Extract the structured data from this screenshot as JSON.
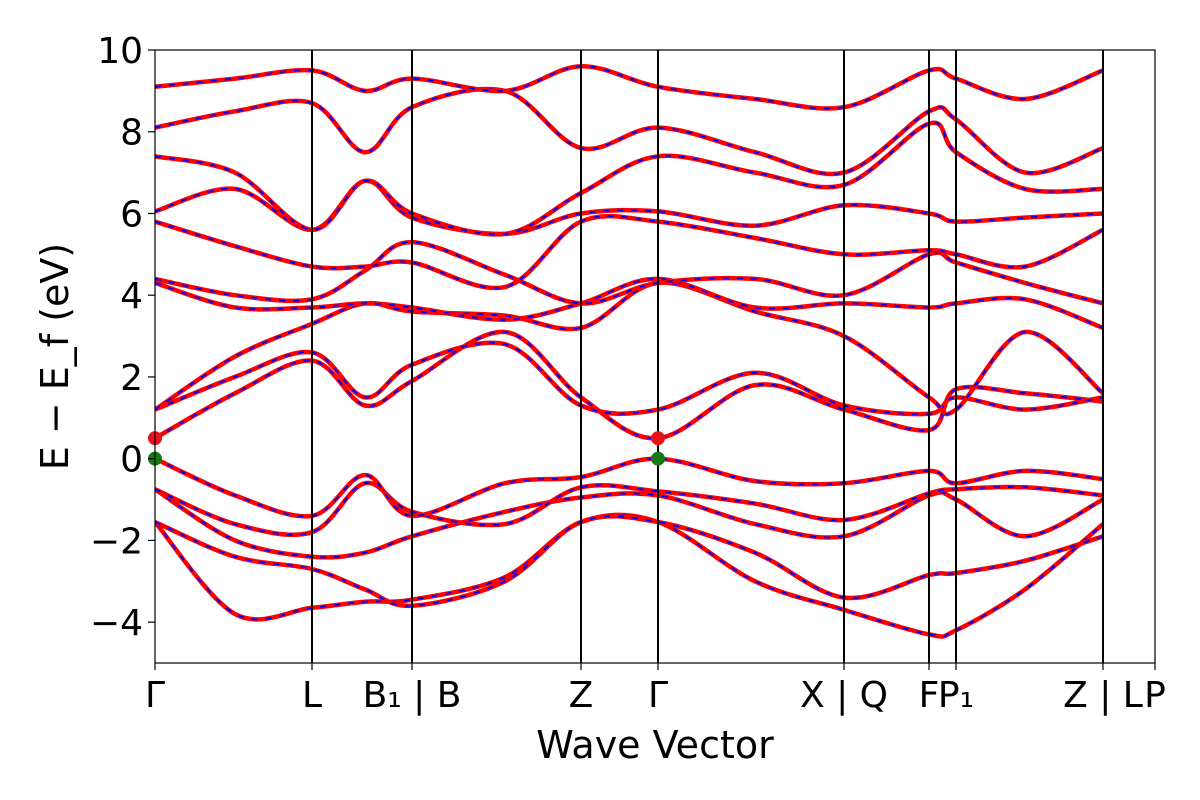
{
  "chart_data": {
    "type": "line",
    "title": "",
    "xlabel": "Wave Vector",
    "ylabel": "E − E_f (eV)",
    "ylim": [
      -5,
      10
    ],
    "yticks": [
      -4,
      -2,
      0,
      2,
      4,
      6,
      8,
      10
    ],
    "ytick_labels": [
      "−4",
      "−2",
      "0",
      "2",
      "4",
      "6",
      "8",
      "10"
    ],
    "x_range": [
      0,
      1
    ],
    "kpoints": [
      {
        "x": 0.0,
        "label": "Γ"
      },
      {
        "x": 0.157,
        "label": "L"
      },
      {
        "x": 0.257,
        "label": "B₁ | B"
      },
      {
        "x": 0.426,
        "label": "Z"
      },
      {
        "x": 0.503,
        "label": "Γ"
      },
      {
        "x": 0.689,
        "label": "X | Q"
      },
      {
        "x": 0.774,
        "label": "F"
      },
      {
        "x": 0.801,
        "label": "P₁"
      },
      {
        "x": 0.948,
        "label": "Z | L"
      },
      {
        "x": 1.0,
        "label": "P"
      }
    ],
    "band_colors": {
      "dft": "#ff0000",
      "interp": "#0000ff"
    },
    "markers": [
      {
        "name": "CBM",
        "points": [
          {
            "x": 0.0,
            "y": 0.5
          },
          {
            "x": 0.503,
            "y": 0.5
          }
        ],
        "color": "#e8141c"
      },
      {
        "name": "VBM",
        "points": [
          {
            "x": 0.0,
            "y": 0.0
          },
          {
            "x": 0.503,
            "y": 0.0
          }
        ],
        "color": "#137a13"
      }
    ],
    "series": [
      {
        "x": [
          0,
          0.08,
          0.157,
          0.21,
          0.257,
          0.35,
          0.426,
          0.503,
          0.6,
          0.689,
          0.774,
          0.801,
          0.87,
          0.948
        ],
        "values": [
          -1.55,
          -3.8,
          -3.65,
          -3.5,
          -3.45,
          -2.9,
          -1.55,
          -1.55,
          -3.0,
          -3.7,
          -4.3,
          -4.2,
          -3.2,
          -1.6
        ]
      },
      {
        "x": [
          0,
          0.08,
          0.157,
          0.21,
          0.257,
          0.35,
          0.426,
          0.503,
          0.6,
          0.689,
          0.774,
          0.801,
          0.87,
          0.948
        ],
        "values": [
          -1.55,
          -2.4,
          -2.7,
          -3.2,
          -3.6,
          -3.0,
          -1.55,
          -1.55,
          -2.3,
          -3.4,
          -2.85,
          -2.8,
          -2.5,
          -1.9
        ]
      },
      {
        "x": [
          0,
          0.08,
          0.157,
          0.21,
          0.257,
          0.35,
          0.426,
          0.503,
          0.6,
          0.689,
          0.774,
          0.801,
          0.87,
          0.948
        ],
        "values": [
          -0.75,
          -2.0,
          -2.4,
          -2.3,
          -1.9,
          -1.3,
          -0.95,
          -0.9,
          -1.6,
          -1.9,
          -0.9,
          -1.0,
          -1.9,
          -1.0
        ]
      },
      {
        "x": [
          0,
          0.08,
          0.157,
          0.21,
          0.257,
          0.35,
          0.426,
          0.503,
          0.6,
          0.689,
          0.774,
          0.801,
          0.87,
          0.948
        ],
        "values": [
          -0.75,
          -1.6,
          -1.8,
          -0.6,
          -1.3,
          -1.6,
          -0.7,
          -0.8,
          -1.1,
          -1.5,
          -0.85,
          -0.75,
          -0.7,
          -0.9
        ]
      },
      {
        "x": [
          0,
          0.08,
          0.157,
          0.21,
          0.257,
          0.35,
          0.426,
          0.503,
          0.6,
          0.689,
          0.774,
          0.801,
          0.87,
          0.948
        ],
        "values": [
          0.0,
          -0.9,
          -1.4,
          -0.4,
          -1.4,
          -0.6,
          -0.45,
          0.0,
          -0.55,
          -0.6,
          -0.3,
          -0.6,
          -0.3,
          -0.5
        ]
      },
      {
        "x": [
          0,
          0.08,
          0.157,
          0.21,
          0.257,
          0.35,
          0.426,
          0.503,
          0.6,
          0.689,
          0.774,
          0.801,
          0.87,
          0.948
        ],
        "values": [
          0.5,
          1.6,
          2.4,
          1.3,
          1.9,
          3.1,
          1.5,
          0.5,
          1.8,
          1.2,
          0.7,
          1.7,
          1.6,
          1.4
        ]
      },
      {
        "x": [
          0,
          0.08,
          0.157,
          0.21,
          0.257,
          0.35,
          0.426,
          0.503,
          0.6,
          0.689,
          0.774,
          0.801,
          0.87,
          0.948
        ],
        "values": [
          1.2,
          2.0,
          2.6,
          1.5,
          2.3,
          2.8,
          1.3,
          1.2,
          2.1,
          1.3,
          1.1,
          1.5,
          1.2,
          1.5
        ]
      },
      {
        "x": [
          0,
          0.08,
          0.157,
          0.21,
          0.257,
          0.35,
          0.426,
          0.503,
          0.6,
          0.689,
          0.774,
          0.801,
          0.87,
          0.948
        ],
        "values": [
          1.2,
          2.5,
          3.3,
          3.8,
          3.6,
          3.5,
          3.2,
          4.3,
          3.6,
          3.0,
          1.5,
          1.2,
          3.1,
          1.6
        ]
      },
      {
        "x": [
          0,
          0.08,
          0.157,
          0.21,
          0.257,
          0.35,
          0.426,
          0.503,
          0.6,
          0.689,
          0.774,
          0.801,
          0.87,
          0.948
        ],
        "values": [
          4.3,
          3.7,
          3.7,
          3.8,
          3.7,
          3.4,
          3.8,
          4.4,
          3.7,
          3.8,
          3.7,
          3.8,
          3.9,
          3.2
        ]
      },
      {
        "x": [
          0,
          0.08,
          0.157,
          0.21,
          0.257,
          0.35,
          0.426,
          0.503,
          0.6,
          0.689,
          0.774,
          0.801,
          0.87,
          0.948
        ],
        "values": [
          4.4,
          4.0,
          3.9,
          4.6,
          5.3,
          4.5,
          3.8,
          4.3,
          4.4,
          4.0,
          5.0,
          4.8,
          4.3,
          3.8
        ]
      },
      {
        "x": [
          0,
          0.08,
          0.157,
          0.21,
          0.257,
          0.35,
          0.426,
          0.503,
          0.6,
          0.689,
          0.774,
          0.801,
          0.87,
          0.948
        ],
        "values": [
          5.8,
          5.2,
          4.7,
          4.7,
          4.8,
          4.2,
          5.8,
          5.8,
          5.4,
          5.0,
          5.1,
          5.0,
          4.7,
          5.6
        ]
      },
      {
        "x": [
          0,
          0.08,
          0.157,
          0.21,
          0.257,
          0.35,
          0.426,
          0.503,
          0.6,
          0.689,
          0.774,
          0.801,
          0.87,
          0.948
        ],
        "values": [
          6.05,
          6.6,
          5.6,
          6.8,
          5.9,
          5.5,
          6.0,
          6.05,
          5.7,
          6.2,
          6.0,
          5.8,
          5.9,
          6.0
        ]
      },
      {
        "x": [
          0,
          0.08,
          0.157,
          0.21,
          0.257,
          0.35,
          0.426,
          0.503,
          0.6,
          0.689,
          0.774,
          0.801,
          0.87,
          0.948
        ],
        "values": [
          7.4,
          7.0,
          5.6,
          6.8,
          6.0,
          5.5,
          6.5,
          7.4,
          7.0,
          6.7,
          8.2,
          7.5,
          6.6,
          6.6
        ]
      },
      {
        "x": [
          0,
          0.08,
          0.157,
          0.21,
          0.257,
          0.35,
          0.426,
          0.503,
          0.6,
          0.689,
          0.774,
          0.801,
          0.87,
          0.948
        ],
        "values": [
          8.1,
          8.5,
          8.7,
          7.5,
          8.6,
          9.0,
          7.6,
          8.1,
          7.5,
          7.0,
          8.5,
          8.3,
          7.0,
          7.6
        ]
      },
      {
        "x": [
          0,
          0.08,
          0.157,
          0.21,
          0.257,
          0.35,
          0.426,
          0.503,
          0.6,
          0.689,
          0.774,
          0.801,
          0.87,
          0.948
        ],
        "values": [
          9.1,
          9.3,
          9.5,
          9.0,
          9.3,
          9.0,
          9.6,
          9.1,
          8.8,
          8.6,
          9.5,
          9.3,
          8.8,
          9.5
        ]
      }
    ]
  }
}
